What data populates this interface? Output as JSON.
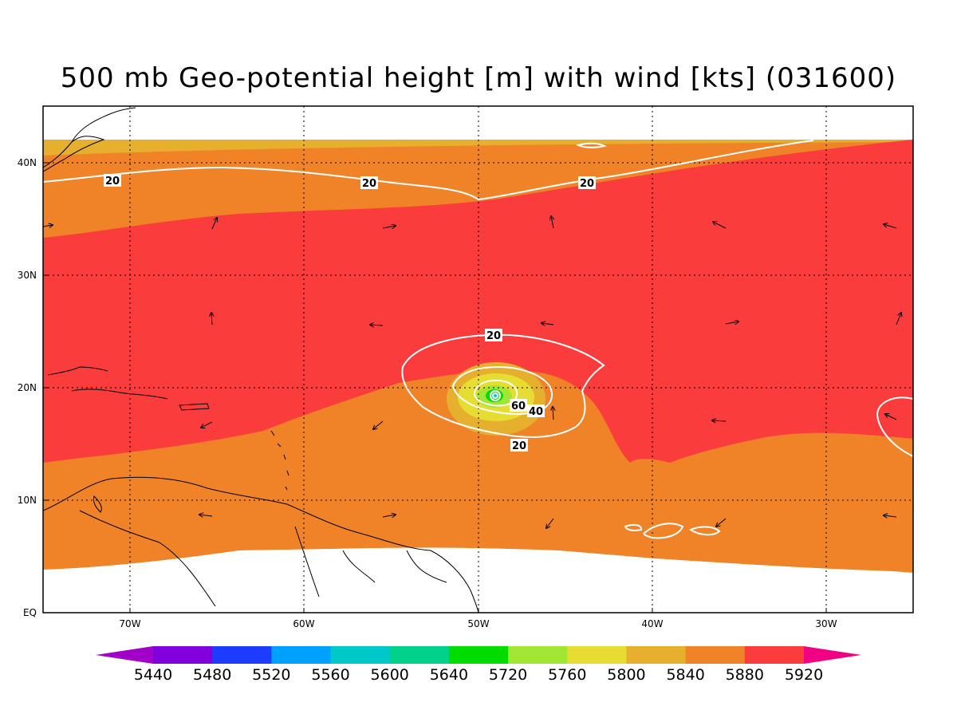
{
  "title": "500 mb Geo-potential height [m] with wind [kts] (031600)",
  "axes": {
    "x_ticks": [
      "70W",
      "60W",
      "50W",
      "40W",
      "30W"
    ],
    "y_ticks": [
      "EQ",
      "10N",
      "20N",
      "30N",
      "40N"
    ]
  },
  "colorbar": {
    "labels": [
      "5440",
      "5480",
      "5520",
      "5560",
      "5600",
      "5640",
      "5720",
      "5760",
      "5800",
      "5840",
      "5880",
      "5920"
    ],
    "colors": [
      "#a000c8",
      "#8200dc",
      "#1e3cff",
      "#00a0ff",
      "#00c8c8",
      "#00d28c",
      "#00dc00",
      "#a0e632",
      "#e6dc32",
      "#e6af2d",
      "#f08228",
      "#fa3c3c",
      "#f00082"
    ]
  },
  "contour_labels": {
    "wind_20_a": "20",
    "wind_20_b": "20",
    "wind_20_c": "20",
    "wind_20_d": "20",
    "wind_20_e": "20",
    "wind_40": "40",
    "wind_60": "60"
  },
  "map": {
    "lon_range": [
      -75,
      -25
    ],
    "lat_range": [
      0,
      45
    ],
    "fill_colors": {
      "h5800": "#e6af2d",
      "h5840": "#f08228",
      "h5880": "#fa3c3c",
      "center_5760": "#e6dc32",
      "center_5720": "#a0e632",
      "center_5640": "#00dc00"
    }
  }
}
